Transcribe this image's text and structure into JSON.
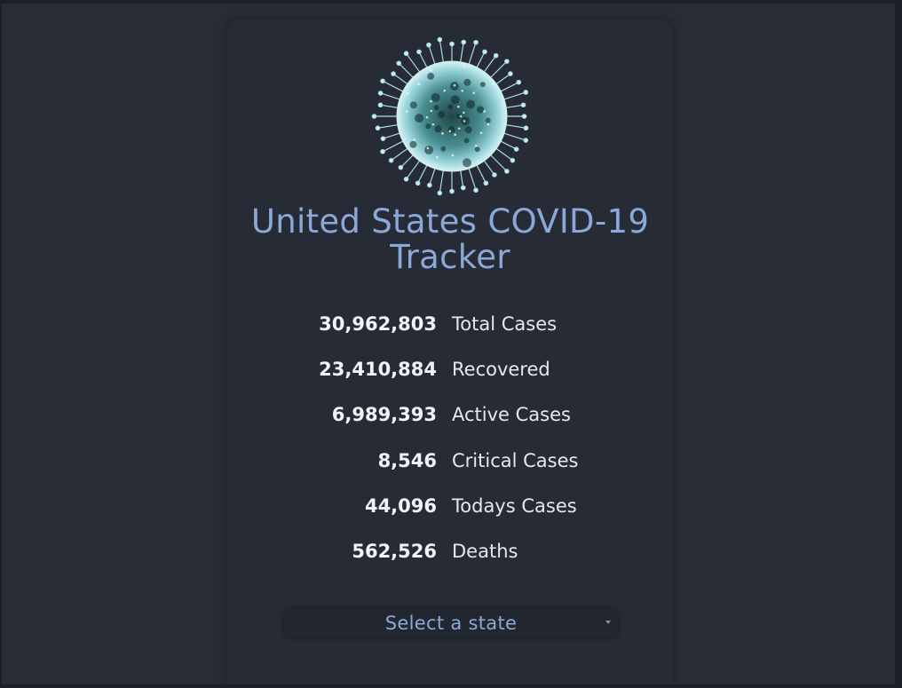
{
  "header": {
    "title": "United States COVID-19 Tracker",
    "logo_icon": "virus-icon"
  },
  "stats": [
    {
      "value": "30,962,803",
      "label": "Total Cases"
    },
    {
      "value": "23,410,884",
      "label": "Recovered"
    },
    {
      "value": "6,989,393",
      "label": "Active Cases"
    },
    {
      "value": "8,546",
      "label": "Critical Cases"
    },
    {
      "value": "44,096",
      "label": "Todays Cases"
    },
    {
      "value": "562,526",
      "label": "Deaths"
    }
  ],
  "state_select": {
    "selected": "Select a state",
    "icon": "chevron-down-icon"
  },
  "colors": {
    "background": "#272c37",
    "card": "#262b35",
    "accent": "#8aa8d8",
    "text": "#f1f3f6"
  }
}
